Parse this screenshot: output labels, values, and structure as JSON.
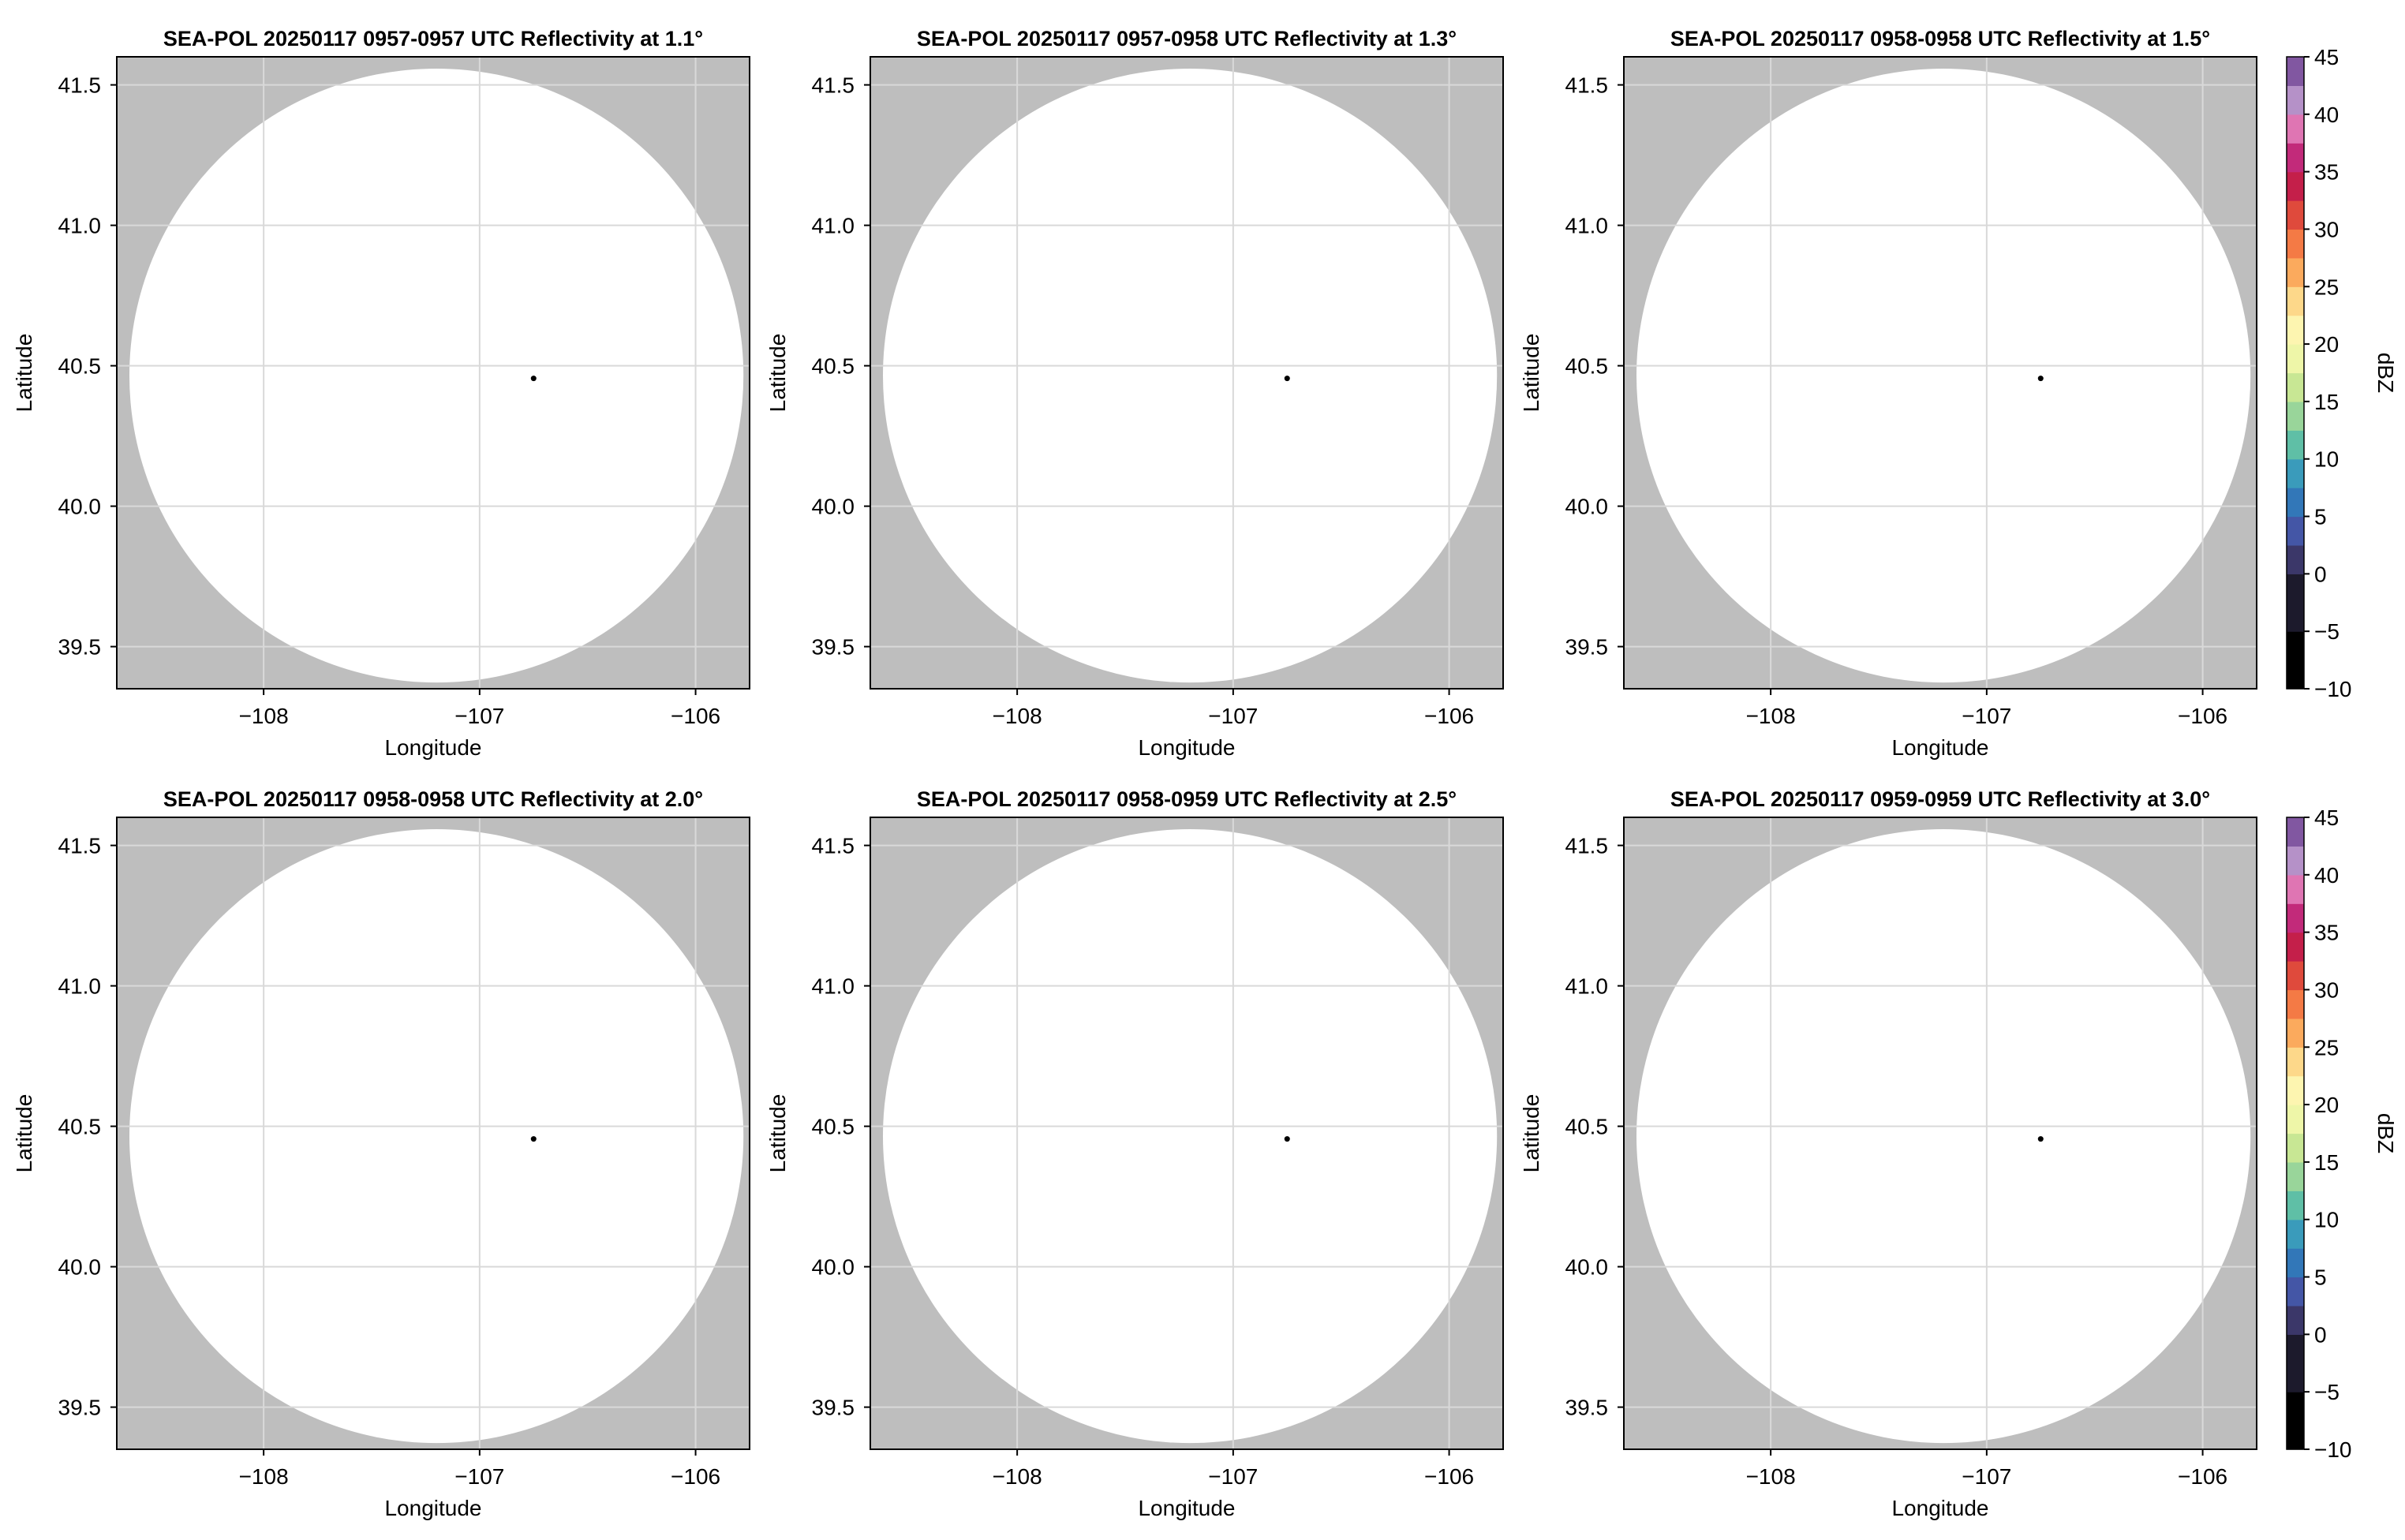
{
  "colors": {
    "no_data_background": "#bebebe",
    "coverage_fill": "#ffffff",
    "grid_line": "#d9d9d9",
    "frame": "#000000",
    "radar_marker": "#000000"
  },
  "chart_data": [
    {
      "type": "heatmap",
      "title": "SEA-POL 20250117 0957-0957 UTC Reflectivity at 1.1°",
      "xlabel": "Longitude",
      "ylabel": "Latitude",
      "xlim": [
        -108.68,
        -105.75
      ],
      "ylim": [
        39.35,
        41.6
      ],
      "xticks": [
        -108,
        -107,
        -106
      ],
      "xtick_labels": [
        "−108",
        "−107",
        "−106"
      ],
      "yticks": [
        39.5,
        40.0,
        40.5,
        41.0,
        41.5
      ],
      "ytick_labels": [
        "39.5",
        "40.0",
        "40.5",
        "41.0",
        "41.5"
      ],
      "grid": true,
      "coverage_circle": {
        "center_lon": -107.2,
        "center_lat": 40.465,
        "radius_lat_deg": 1.093
      },
      "radar_location": {
        "lon": -106.75,
        "lat": 40.455
      },
      "colorbar": null
    },
    {
      "type": "heatmap",
      "title": "SEA-POL 20250117 0957-0958 UTC Reflectivity at 1.3°",
      "xlabel": "Longitude",
      "ylabel": "Latitude",
      "xlim": [
        -108.68,
        -105.75
      ],
      "ylim": [
        39.35,
        41.6
      ],
      "xticks": [
        -108,
        -107,
        -106
      ],
      "xtick_labels": [
        "−108",
        "−107",
        "−106"
      ],
      "yticks": [
        39.5,
        40.0,
        40.5,
        41.0,
        41.5
      ],
      "ytick_labels": [
        "39.5",
        "40.0",
        "40.5",
        "41.0",
        "41.5"
      ],
      "grid": true,
      "coverage_circle": {
        "center_lon": -107.2,
        "center_lat": 40.465,
        "radius_lat_deg": 1.093
      },
      "radar_location": {
        "lon": -106.75,
        "lat": 40.455
      },
      "colorbar": null
    },
    {
      "type": "heatmap",
      "title": "SEA-POL 20250117 0958-0958 UTC Reflectivity at 1.5°",
      "xlabel": "Longitude",
      "ylabel": "Latitude",
      "xlim": [
        -108.68,
        -105.75
      ],
      "ylim": [
        39.35,
        41.6
      ],
      "xticks": [
        -108,
        -107,
        -106
      ],
      "xtick_labels": [
        "−108",
        "−107",
        "−106"
      ],
      "yticks": [
        39.5,
        40.0,
        40.5,
        41.0,
        41.5
      ],
      "ytick_labels": [
        "39.5",
        "40.0",
        "40.5",
        "41.0",
        "41.5"
      ],
      "grid": true,
      "coverage_circle": {
        "center_lon": -107.2,
        "center_lat": 40.465,
        "radius_lat_deg": 1.093
      },
      "radar_location": {
        "lon": -106.75,
        "lat": 40.455
      },
      "colorbar": {
        "label": "dBZ",
        "range": [
          -10,
          45
        ],
        "ticks": [
          -10,
          -5,
          0,
          5,
          10,
          15,
          20,
          25,
          30,
          35,
          40,
          45
        ],
        "tick_labels": [
          "−10",
          "−5",
          "0",
          "5",
          "10",
          "15",
          "20",
          "25",
          "30",
          "35",
          "40",
          "45"
        ],
        "band_step": 2.5,
        "color_stops": [
          {
            "v": -10,
            "c": "#000000"
          },
          {
            "v": -5,
            "c": "#1c1a2c"
          },
          {
            "v": 0,
            "c": "#3b3769"
          },
          {
            "v": 2.5,
            "c": "#4456a6"
          },
          {
            "v": 5,
            "c": "#3277b8"
          },
          {
            "v": 7.5,
            "c": "#3a9bbb"
          },
          {
            "v": 10,
            "c": "#5fbfa6"
          },
          {
            "v": 12.5,
            "c": "#99d59a"
          },
          {
            "v": 15,
            "c": "#c8e794"
          },
          {
            "v": 17.5,
            "c": "#eef6a8"
          },
          {
            "v": 20,
            "c": "#fdf5b0"
          },
          {
            "v": 22.5,
            "c": "#fdd88a"
          },
          {
            "v": 25,
            "c": "#fbaa5d"
          },
          {
            "v": 27.5,
            "c": "#f47a45"
          },
          {
            "v": 30,
            "c": "#df4a3c"
          },
          {
            "v": 32.5,
            "c": "#c41f4a"
          },
          {
            "v": 35,
            "c": "#c22a7a"
          },
          {
            "v": 37.5,
            "c": "#df75b3"
          },
          {
            "v": 40,
            "c": "#b591c8"
          },
          {
            "v": 42.5,
            "c": "#8157a1"
          },
          {
            "v": 45,
            "c": "#3f0a4a"
          }
        ]
      }
    },
    {
      "type": "heatmap",
      "title": "SEA-POL 20250117 0958-0958 UTC Reflectivity at 2.0°",
      "xlabel": "Longitude",
      "ylabel": "Latitude",
      "xlim": [
        -108.68,
        -105.75
      ],
      "ylim": [
        39.35,
        41.6
      ],
      "xticks": [
        -108,
        -107,
        -106
      ],
      "xtick_labels": [
        "−108",
        "−107",
        "−106"
      ],
      "yticks": [
        39.5,
        40.0,
        40.5,
        41.0,
        41.5
      ],
      "ytick_labels": [
        "39.5",
        "40.0",
        "40.5",
        "41.0",
        "41.5"
      ],
      "grid": true,
      "coverage_circle": {
        "center_lon": -107.2,
        "center_lat": 40.465,
        "radius_lat_deg": 1.093
      },
      "radar_location": {
        "lon": -106.75,
        "lat": 40.455
      },
      "colorbar": null
    },
    {
      "type": "heatmap",
      "title": "SEA-POL 20250117 0958-0959 UTC Reflectivity at 2.5°",
      "xlabel": "Longitude",
      "ylabel": "Latitude",
      "xlim": [
        -108.68,
        -105.75
      ],
      "ylim": [
        39.35,
        41.6
      ],
      "xticks": [
        -108,
        -107,
        -106
      ],
      "xtick_labels": [
        "−108",
        "−107",
        "−106"
      ],
      "yticks": [
        39.5,
        40.0,
        40.5,
        41.0,
        41.5
      ],
      "ytick_labels": [
        "39.5",
        "40.0",
        "40.5",
        "41.0",
        "41.5"
      ],
      "grid": true,
      "coverage_circle": {
        "center_lon": -107.2,
        "center_lat": 40.465,
        "radius_lat_deg": 1.093
      },
      "radar_location": {
        "lon": -106.75,
        "lat": 40.455
      },
      "colorbar": null
    },
    {
      "type": "heatmap",
      "title": "SEA-POL 20250117 0959-0959 UTC Reflectivity at 3.0°",
      "xlabel": "Longitude",
      "ylabel": "Latitude",
      "xlim": [
        -108.68,
        -105.75
      ],
      "ylim": [
        39.35,
        41.6
      ],
      "xticks": [
        -108,
        -107,
        -106
      ],
      "xtick_labels": [
        "−108",
        "−107",
        "−106"
      ],
      "yticks": [
        39.5,
        40.0,
        40.5,
        41.0,
        41.5
      ],
      "ytick_labels": [
        "39.5",
        "40.0",
        "40.5",
        "41.0",
        "41.5"
      ],
      "grid": true,
      "coverage_circle": {
        "center_lon": -107.2,
        "center_lat": 40.465,
        "radius_lat_deg": 1.093
      },
      "radar_location": {
        "lon": -106.75,
        "lat": 40.455
      },
      "colorbar": {
        "label": "dBZ",
        "range": [
          -10,
          45
        ],
        "ticks": [
          -10,
          -5,
          0,
          5,
          10,
          15,
          20,
          25,
          30,
          35,
          40,
          45
        ],
        "tick_labels": [
          "−10",
          "−5",
          "0",
          "5",
          "10",
          "15",
          "20",
          "25",
          "30",
          "35",
          "40",
          "45"
        ],
        "band_step": 2.5,
        "color_stops": [
          {
            "v": -10,
            "c": "#000000"
          },
          {
            "v": -5,
            "c": "#1c1a2c"
          },
          {
            "v": 0,
            "c": "#3b3769"
          },
          {
            "v": 2.5,
            "c": "#4456a6"
          },
          {
            "v": 5,
            "c": "#3277b8"
          },
          {
            "v": 7.5,
            "c": "#3a9bbb"
          },
          {
            "v": 10,
            "c": "#5fbfa6"
          },
          {
            "v": 12.5,
            "c": "#99d59a"
          },
          {
            "v": 15,
            "c": "#c8e794"
          },
          {
            "v": 17.5,
            "c": "#eef6a8"
          },
          {
            "v": 20,
            "c": "#fdf5b0"
          },
          {
            "v": 22.5,
            "c": "#fdd88a"
          },
          {
            "v": 25,
            "c": "#fbaa5d"
          },
          {
            "v": 27.5,
            "c": "#f47a45"
          },
          {
            "v": 30,
            "c": "#df4a3c"
          },
          {
            "v": 32.5,
            "c": "#c41f4a"
          },
          {
            "v": 35,
            "c": "#c22a7a"
          },
          {
            "v": 37.5,
            "c": "#df75b3"
          },
          {
            "v": 40,
            "c": "#b591c8"
          },
          {
            "v": 42.5,
            "c": "#8157a1"
          },
          {
            "v": 45,
            "c": "#3f0a4a"
          }
        ]
      }
    }
  ]
}
